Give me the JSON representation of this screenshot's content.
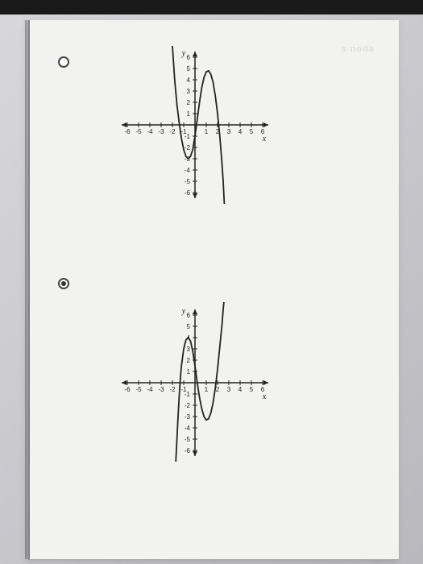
{
  "page": {
    "background_color": "#f2f2f0",
    "faded_watermark": "s noda"
  },
  "radios": {
    "top_selected": false,
    "bottom_selected": true
  },
  "chart_top": {
    "type": "line",
    "xlim": [
      -6,
      6
    ],
    "ylim": [
      -6,
      6
    ],
    "xtick_step": 1,
    "ytick_step": 1,
    "x_axis_label": "x",
    "y_axis_label": "y",
    "axis_color": "#222222",
    "curve_color": "#222222",
    "curve_width": 1.8,
    "tick_fontsize": 8,
    "label_fontsize": 10,
    "curve_points": [
      [
        -2.0,
        7.0
      ],
      [
        -1.9,
        5.5
      ],
      [
        -1.8,
        4.0
      ],
      [
        -1.6,
        1.8
      ],
      [
        -1.4,
        0.2
      ],
      [
        -1.2,
        -1.2
      ],
      [
        -1.0,
        -2.2
      ],
      [
        -0.8,
        -2.8
      ],
      [
        -0.6,
        -3.0
      ],
      [
        -0.4,
        -2.8
      ],
      [
        -0.2,
        -2.2
      ],
      [
        0.0,
        -1.0
      ],
      [
        0.2,
        0.5
      ],
      [
        0.4,
        2.0
      ],
      [
        0.6,
        3.3
      ],
      [
        0.8,
        4.2
      ],
      [
        1.0,
        4.7
      ],
      [
        1.2,
        4.8
      ],
      [
        1.4,
        4.5
      ],
      [
        1.6,
        3.8
      ],
      [
        1.8,
        2.6
      ],
      [
        2.0,
        1.0
      ],
      [
        2.2,
        -1.0
      ],
      [
        2.4,
        -3.5
      ],
      [
        2.5,
        -5.0
      ],
      [
        2.6,
        -7.0
      ]
    ],
    "x_tick_labels": [
      "-6",
      "-5",
      "-4",
      "-3",
      "-2",
      "-1",
      "1",
      "2",
      "3",
      "4",
      "5",
      "6"
    ],
    "y_tick_labels": [
      "-6",
      "-5",
      "-4",
      "-3",
      "-2",
      "-1",
      "1",
      "2",
      "3",
      "4",
      "5",
      "6"
    ]
  },
  "chart_bottom": {
    "type": "line",
    "xlim": [
      -6,
      6
    ],
    "ylim": [
      -6,
      6
    ],
    "xtick_step": 1,
    "ytick_step": 1,
    "x_axis_label": "x",
    "y_axis_label": "y",
    "axis_color": "#222222",
    "curve_color": "#222222",
    "curve_width": 1.8,
    "tick_fontsize": 8,
    "label_fontsize": 10,
    "curve_points": [
      [
        -1.7,
        -7.0
      ],
      [
        -1.6,
        -5.0
      ],
      [
        -1.5,
        -3.0
      ],
      [
        -1.4,
        -1.2
      ],
      [
        -1.3,
        0.3
      ],
      [
        -1.2,
        1.5
      ],
      [
        -1.0,
        3.0
      ],
      [
        -0.8,
        3.8
      ],
      [
        -0.6,
        4.0
      ],
      [
        -0.4,
        3.7
      ],
      [
        -0.2,
        2.8
      ],
      [
        0.0,
        1.5
      ],
      [
        0.2,
        0.0
      ],
      [
        0.4,
        -1.3
      ],
      [
        0.6,
        -2.3
      ],
      [
        0.8,
        -3.0
      ],
      [
        1.0,
        -3.3
      ],
      [
        1.2,
        -3.2
      ],
      [
        1.4,
        -2.7
      ],
      [
        1.6,
        -1.8
      ],
      [
        1.8,
        -0.5
      ],
      [
        2.0,
        1.2
      ],
      [
        2.2,
        3.2
      ],
      [
        2.4,
        5.2
      ],
      [
        2.5,
        6.5
      ],
      [
        2.6,
        7.5
      ]
    ],
    "x_tick_labels": [
      "-6",
      "-5",
      "-4",
      "-3",
      "-2",
      "-1",
      "1",
      "2",
      "3",
      "4",
      "5",
      "6"
    ],
    "y_tick_labels": [
      "-6",
      "-5",
      "-4",
      "-3",
      "-2",
      "-1",
      "1",
      "2",
      "3",
      "4",
      "5",
      "6"
    ]
  }
}
